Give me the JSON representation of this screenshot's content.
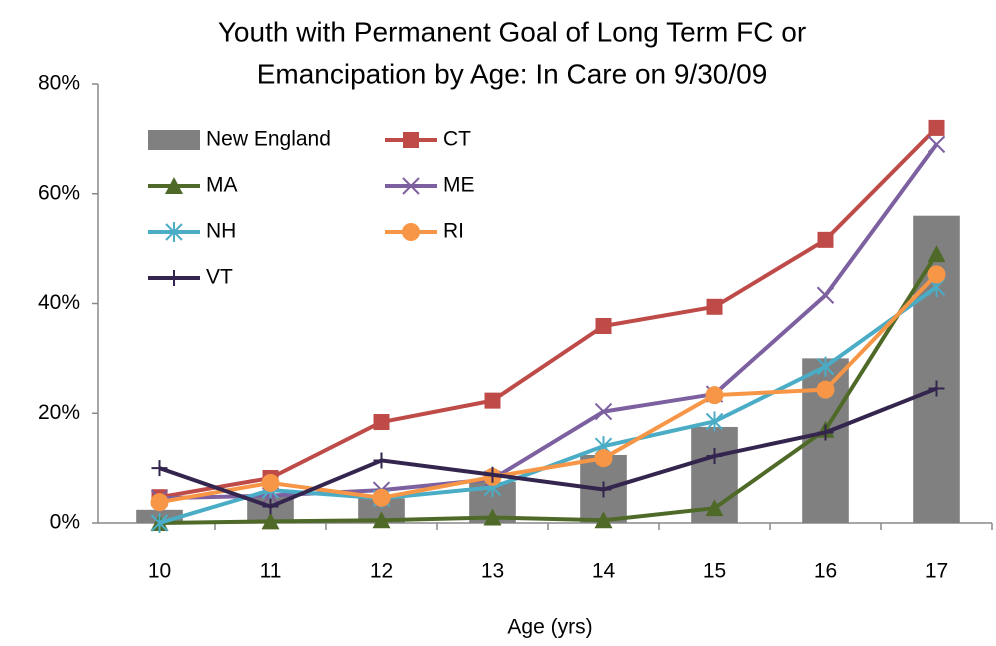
{
  "chart_data": {
    "type": "bar",
    "title": [
      "Youth with Permanent Goal  of Long Term FC or",
      "Emancipation by Age: In Care on 9/30/09"
    ],
    "x_label": "Age (yrs)",
    "categories": [
      "10",
      "11",
      "12",
      "13",
      "14",
      "15",
      "16",
      "17"
    ],
    "ylim": [
      0,
      80
    ],
    "yticks": [
      {
        "value": 0,
        "label": "0%"
      },
      {
        "value": 20,
        "label": "20%"
      },
      {
        "value": 40,
        "label": "40%"
      },
      {
        "value": 60,
        "label": "60%"
      },
      {
        "value": 80,
        "label": "80%"
      }
    ],
    "grid": false,
    "legend": "upper left",
    "series": [
      {
        "name": "New England",
        "type": "bar",
        "marker": "none",
        "color": "#808080",
        "values": [
          2.4,
          5,
          4.5,
          7.5,
          12.4,
          17.5,
          30,
          56
        ]
      },
      {
        "name": "CT",
        "type": "line",
        "marker": "square",
        "color": "#be4b48",
        "values": [
          4.7,
          8.2,
          18.4,
          22.3,
          35.9,
          39.4,
          51.6,
          72
        ]
      },
      {
        "name": "MA",
        "type": "line",
        "marker": "triangle",
        "color": "#4f6a28",
        "values": [
          0,
          0.3,
          0.5,
          1.0,
          0.5,
          2.7,
          17,
          49
        ]
      },
      {
        "name": "ME",
        "type": "line",
        "marker": "x",
        "color": "#7d60a0",
        "values": [
          4.5,
          5,
          6,
          8,
          20.3,
          23.5,
          41.5,
          69
        ]
      },
      {
        "name": "NH",
        "type": "line",
        "marker": "asterisk",
        "color": "#4bacc6",
        "values": [
          0,
          6,
          4.5,
          6.5,
          14,
          18.5,
          28.5,
          43
        ]
      },
      {
        "name": "RI",
        "type": "line",
        "marker": "circle",
        "color": "#f79646",
        "values": [
          3.8,
          7.3,
          4.6,
          8.4,
          11.8,
          23.3,
          24.3,
          45.3
        ]
      },
      {
        "name": "VT",
        "type": "line",
        "marker": "plus",
        "color": "#33254d",
        "values": [
          10,
          3,
          11.4,
          8.8,
          6.1,
          12.2,
          16.5,
          24.5
        ]
      }
    ]
  }
}
